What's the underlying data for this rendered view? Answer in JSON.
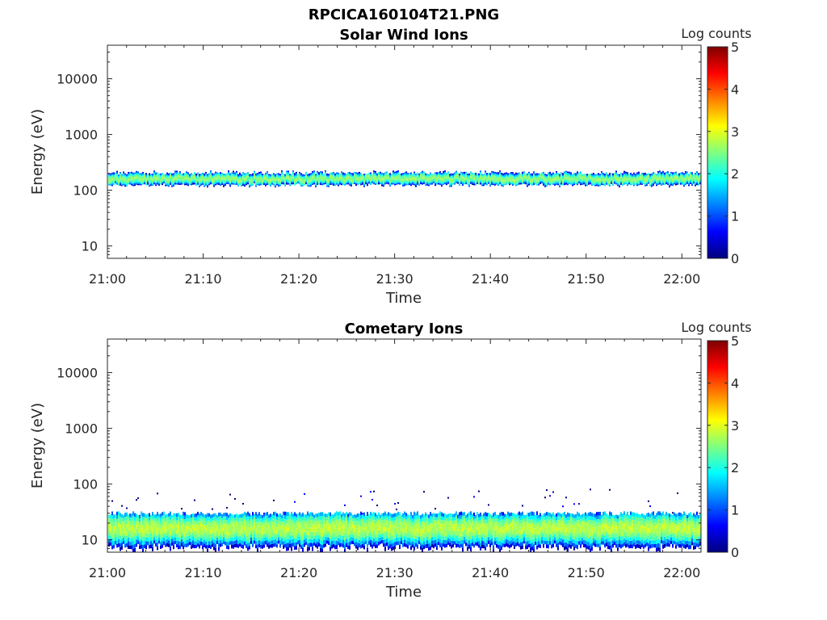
{
  "figure_title": "RPCICA160104T21.PNG",
  "chart_data": [
    {
      "type": "heatmap",
      "title": "Solar Wind Ions",
      "xlabel": "Time",
      "ylabel": "Energy (eV)",
      "y_scale": "log",
      "ylim": [
        6,
        40000
      ],
      "xlim": [
        "21:00",
        "22:02"
      ],
      "x_ticks": [
        "21:00",
        "21:10",
        "21:20",
        "21:30",
        "21:40",
        "21:50",
        "22:00"
      ],
      "y_ticks": [
        10,
        100,
        1000,
        10000
      ],
      "y_tick_labels": [
        "10",
        "100",
        "1000",
        "10000"
      ],
      "colorbar": {
        "label": "Log counts",
        "range": [
          0,
          5
        ],
        "ticks": [
          "0",
          "1",
          "2",
          "3",
          "4",
          "5"
        ],
        "colormap": "jet"
      },
      "band": {
        "energy_low": 120,
        "energy_high": 210,
        "peak_energy": 160,
        "peak_log_counts": 2.6,
        "sporadic_counts": false
      }
    },
    {
      "type": "heatmap",
      "title": "Cometary Ions",
      "xlabel": "Time",
      "ylabel": "Energy (eV)",
      "y_scale": "log",
      "ylim": [
        6,
        40000
      ],
      "xlim": [
        "21:00",
        "22:02"
      ],
      "x_ticks": [
        "21:00",
        "21:10",
        "21:20",
        "21:30",
        "21:40",
        "21:50",
        "22:00"
      ],
      "y_ticks": [
        10,
        100,
        1000,
        10000
      ],
      "y_tick_labels": [
        "10",
        "100",
        "1000",
        "10000"
      ],
      "colorbar": {
        "label": "Log counts",
        "range": [
          0,
          5
        ],
        "ticks": [
          "0",
          "1",
          "2",
          "3",
          "4",
          "5"
        ],
        "colormap": "jet"
      },
      "band": {
        "energy_low": 6,
        "energy_high": 30,
        "peak_energy": 16,
        "peak_log_counts": 2.8,
        "sporadic_counts": true,
        "sporadic_max_energy": 85
      }
    }
  ]
}
